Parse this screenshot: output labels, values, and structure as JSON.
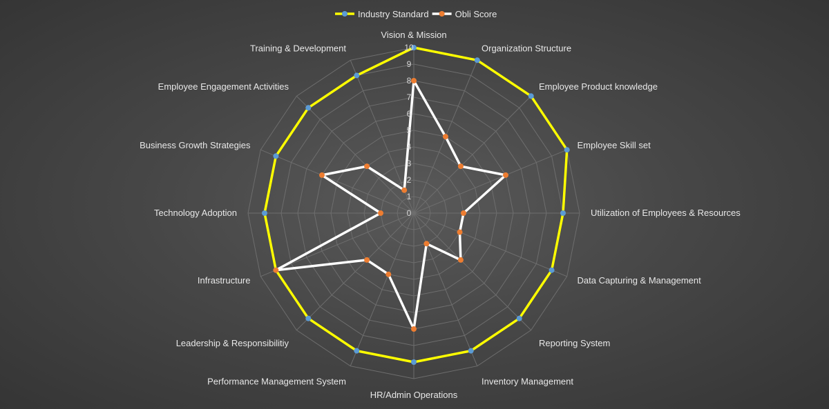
{
  "chart_data": {
    "type": "radar",
    "title": "",
    "categories": [
      "Vision & Mission",
      "Organization Structure",
      "Employee Product knowledge",
      "Employee Skill set",
      "Utilization of Employees & Resources",
      "Data Capturing & Management",
      "Reporting System",
      "Inventory Management",
      "HR/Admin Operations",
      "Performance Management System",
      "Leadership & Responsibilitiy",
      "Infrastructure",
      "Technology Adoption",
      "Business Growth Strategies",
      "Employee Engagement Activities",
      "Training & Development"
    ],
    "series": [
      {
        "name": "Industry Standard",
        "values": [
          10,
          10,
          10,
          10,
          9,
          9,
          9,
          9,
          9,
          9,
          9,
          9,
          9,
          9,
          9,
          9
        ],
        "line_color": "#FFFF00",
        "marker_color": "#5B9BD5"
      },
      {
        "name": "Obli Score",
        "values": [
          8,
          5,
          4,
          6,
          3,
          3,
          4,
          2,
          7,
          4,
          4,
          9,
          2,
          6,
          4,
          1.5
        ],
        "line_color": "#FFFFFF",
        "marker_color": "#ED7D31"
      }
    ],
    "rlim": [
      0,
      10
    ],
    "ticks": [
      "0",
      "1",
      "2",
      "3",
      "4",
      "5",
      "6",
      "7",
      "8",
      "9",
      "10"
    ],
    "legend_position": "top-center",
    "grid": true
  }
}
